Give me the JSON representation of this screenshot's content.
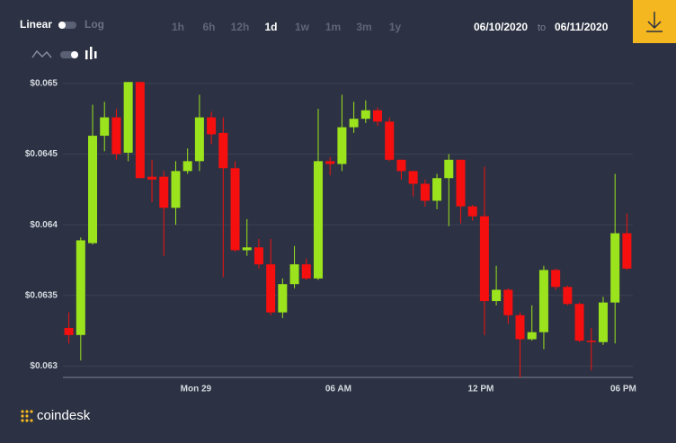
{
  "controls": {
    "scale": [
      "Linear",
      "Log"
    ],
    "ranges": [
      "1h",
      "6h",
      "12h",
      "1d",
      "1w",
      "1m",
      "3m",
      "1y"
    ],
    "selected": "1d",
    "date_from": "06/10/2020",
    "date_separator": "to",
    "date_to": "06/11/2020",
    "brand": "coindesk"
  },
  "chart_data": {
    "type": "candlestick",
    "categories": [
      null,
      null,
      null,
      null,
      null,
      null,
      null,
      null,
      null,
      null,
      null,
      "Mon 29",
      null,
      null,
      null,
      null,
      null,
      null,
      null,
      null,
      null,
      null,
      null,
      "06 AM",
      null,
      null,
      null,
      null,
      null,
      null,
      null,
      null,
      null,
      null,
      null,
      "12 PM",
      null,
      null,
      null,
      null,
      null,
      null,
      null,
      null,
      null,
      null,
      null,
      "06 PM"
    ],
    "open": [
      0.06327,
      0.06322,
      0.06387,
      0.06463,
      0.06476,
      0.06451,
      0.06501,
      0.06434,
      0.06434,
      0.06412,
      0.06438,
      0.06445,
      0.06476,
      0.06465,
      0.0644,
      0.06382,
      0.06384,
      0.06372,
      0.06338,
      0.06358,
      0.06372,
      0.06362,
      0.06445,
      0.06443,
      0.06469,
      0.06475,
      0.06481,
      0.06473,
      0.06446,
      0.06438,
      0.06429,
      0.06417,
      0.06433,
      0.06446,
      0.06413,
      0.06406,
      0.06346,
      0.06354,
      0.06336,
      0.06319,
      0.06324,
      0.06368,
      0.06356,
      0.06344,
      0.06318,
      0.06317,
      0.06345,
      0.06394
    ],
    "high": [
      0.06338,
      0.06391,
      0.06485,
      0.06487,
      0.06482,
      0.06501,
      0.06501,
      0.06446,
      0.06438,
      0.06445,
      0.06454,
      0.06492,
      0.0648,
      0.06476,
      0.06445,
      0.06404,
      0.0639,
      0.0639,
      0.06362,
      0.06385,
      0.06376,
      0.06482,
      0.06448,
      0.06492,
      0.06487,
      0.06488,
      0.06483,
      0.06476,
      0.06446,
      0.06438,
      0.06432,
      0.06436,
      0.0645,
      0.06446,
      0.06414,
      0.06441,
      0.06371,
      0.06355,
      0.06338,
      0.06343,
      0.06371,
      0.06369,
      0.06357,
      0.06345,
      0.06327,
      0.06349,
      0.06436,
      0.06408
    ],
    "low": [
      0.06316,
      0.06304,
      0.06386,
      0.06452,
      0.06446,
      0.06445,
      0.06433,
      0.06416,
      0.06378,
      0.064,
      0.06436,
      0.06438,
      0.06457,
      0.06363,
      0.06381,
      0.06378,
      0.06369,
      0.06336,
      0.06334,
      0.06355,
      0.06361,
      0.06361,
      0.06435,
      0.06438,
      0.06465,
      0.06472,
      0.0647,
      0.06445,
      0.06432,
      0.0642,
      0.06413,
      0.06411,
      0.06399,
      0.06401,
      0.06403,
      0.06322,
      0.06343,
      0.0633,
      0.06292,
      0.06318,
      0.06312,
      0.06354,
      0.06343,
      0.06317,
      0.06297,
      0.06315,
      0.06316,
      0.06368
    ],
    "close": [
      0.06322,
      0.06389,
      0.06463,
      0.06476,
      0.0645,
      0.06501,
      0.06433,
      0.06432,
      0.06412,
      0.06438,
      0.06445,
      0.06476,
      0.06464,
      0.0644,
      0.06382,
      0.06384,
      0.06372,
      0.06338,
      0.06358,
      0.06372,
      0.06362,
      0.06445,
      0.06443,
      0.06469,
      0.06475,
      0.06481,
      0.06473,
      0.06446,
      0.06438,
      0.06429,
      0.06417,
      0.06433,
      0.06446,
      0.06413,
      0.06406,
      0.06346,
      0.06354,
      0.06336,
      0.06319,
      0.06324,
      0.06368,
      0.06356,
      0.06344,
      0.06318,
      0.06317,
      0.06345,
      0.06394,
      0.06369
    ],
    "up_color": "#9be31c",
    "down_color": "#f50f0f",
    "ylim": [
      0.06292,
      0.06505
    ],
    "yticks": [
      {
        "value": 0.063,
        "label": "$0.063"
      },
      {
        "value": 0.0635,
        "label": "$0.0635"
      },
      {
        "value": 0.064,
        "label": "$0.064"
      },
      {
        "value": 0.0645,
        "label": "$0.0645"
      },
      {
        "value": 0.065,
        "label": "$0.065"
      }
    ],
    "grid": true
  }
}
